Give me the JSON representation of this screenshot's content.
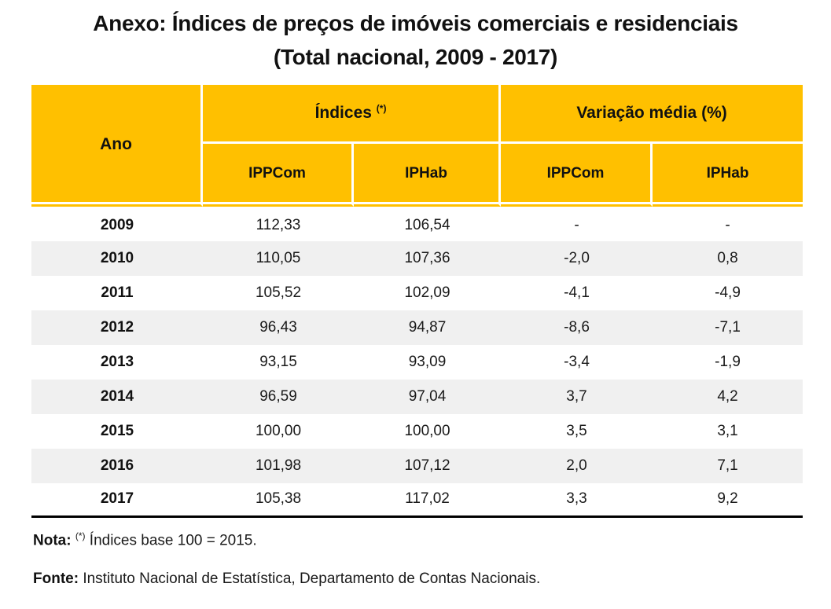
{
  "title": {
    "line1": "Anexo: Índices de preços de imóveis comerciais e residenciais",
    "line2": "(Total nacional, 2009 - 2017)"
  },
  "table": {
    "header": {
      "year_col": "Ano",
      "group1_label": "Índices",
      "group1_sup": "(*)",
      "group2_label": "Variação média (%)",
      "subheaders": [
        "IPPCom",
        "IPHab",
        "IPPCom",
        "IPHab"
      ]
    },
    "rows": [
      {
        "year": "2009",
        "values": [
          "112,33",
          "106,54",
          "-",
          "-"
        ]
      },
      {
        "year": "2010",
        "values": [
          "110,05",
          "107,36",
          "-2,0",
          "0,8"
        ]
      },
      {
        "year": "2011",
        "values": [
          "105,52",
          "102,09",
          "-4,1",
          "-4,9"
        ]
      },
      {
        "year": "2012",
        "values": [
          "96,43",
          "94,87",
          "-8,6",
          "-7,1"
        ]
      },
      {
        "year": "2013",
        "values": [
          "93,15",
          "93,09",
          "-3,4",
          "-1,9"
        ]
      },
      {
        "year": "2014",
        "values": [
          "96,59",
          "97,04",
          "3,7",
          "4,2"
        ]
      },
      {
        "year": "2015",
        "values": [
          "100,00",
          "100,00",
          "3,5",
          "3,1"
        ]
      },
      {
        "year": "2016",
        "values": [
          "101,98",
          "107,12",
          "2,0",
          "7,1"
        ]
      },
      {
        "year": "2017",
        "values": [
          "105,38",
          "117,02",
          "3,3",
          "9,2"
        ]
      }
    ]
  },
  "notes": {
    "nota_label": "Nota:",
    "nota_sup": "(*)",
    "nota_text": " Índices base 100 = 2015.",
    "fonte_label": "Fonte:",
    "fonte_text": " Instituto Nacional de Estatística, Departamento de Contas Nacionais."
  },
  "colors": {
    "header_gold": "#FFC000",
    "row_stripe": "#F0F0F0",
    "bottom_rule": "#000000",
    "text": "#1A1A1A"
  }
}
